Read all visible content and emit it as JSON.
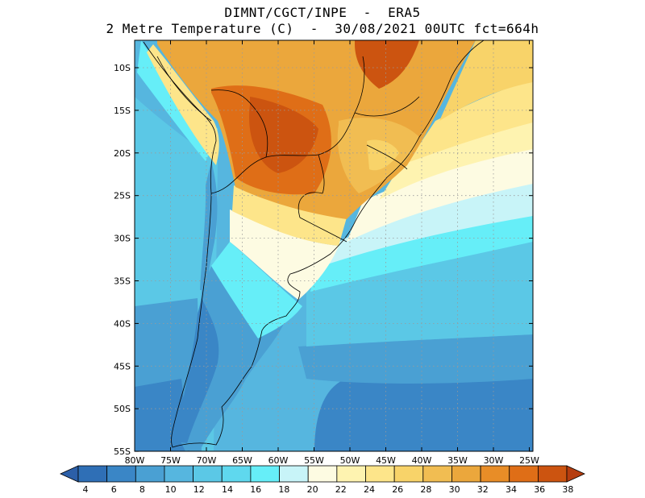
{
  "header": {
    "title_line1": "DIMNT/CGCT/INPE  -  ERA5",
    "title_line2": "2 Metre Temperature (C)  -  30/08/2021 00UTC fct=664h"
  },
  "map": {
    "region": "South America (south of 5S)",
    "lon_labels": [
      "80W",
      "75W",
      "70W",
      "65W",
      "60W",
      "55W",
      "50W",
      "45W",
      "40W",
      "35W",
      "30W",
      "25W"
    ],
    "lat_labels": [
      "10S",
      "15S",
      "20S",
      "25S",
      "30S",
      "35S",
      "40S",
      "45S",
      "50S",
      "55S"
    ],
    "gridlines": "dotted"
  },
  "colorbar": {
    "labels": [
      "4",
      "6",
      "8",
      "10",
      "12",
      "14",
      "16",
      "18",
      "20",
      "22",
      "24",
      "26",
      "28",
      "30",
      "32",
      "34",
      "36",
      "38"
    ],
    "colors": [
      "#2f6fb6",
      "#3a86c6",
      "#4aa0d3",
      "#56b6df",
      "#5bc8e6",
      "#5fd8ee",
      "#66eef8",
      "#c8f4f8",
      "#fdfbe2",
      "#fef3b0",
      "#fde58a",
      "#f8d369",
      "#f1bd52",
      "#eba73c",
      "#e88d27",
      "#df6e17",
      "#cc5410"
    ],
    "extend_low_color": "#2c5fa8",
    "extend_high_color": "#b53d0f"
  }
}
